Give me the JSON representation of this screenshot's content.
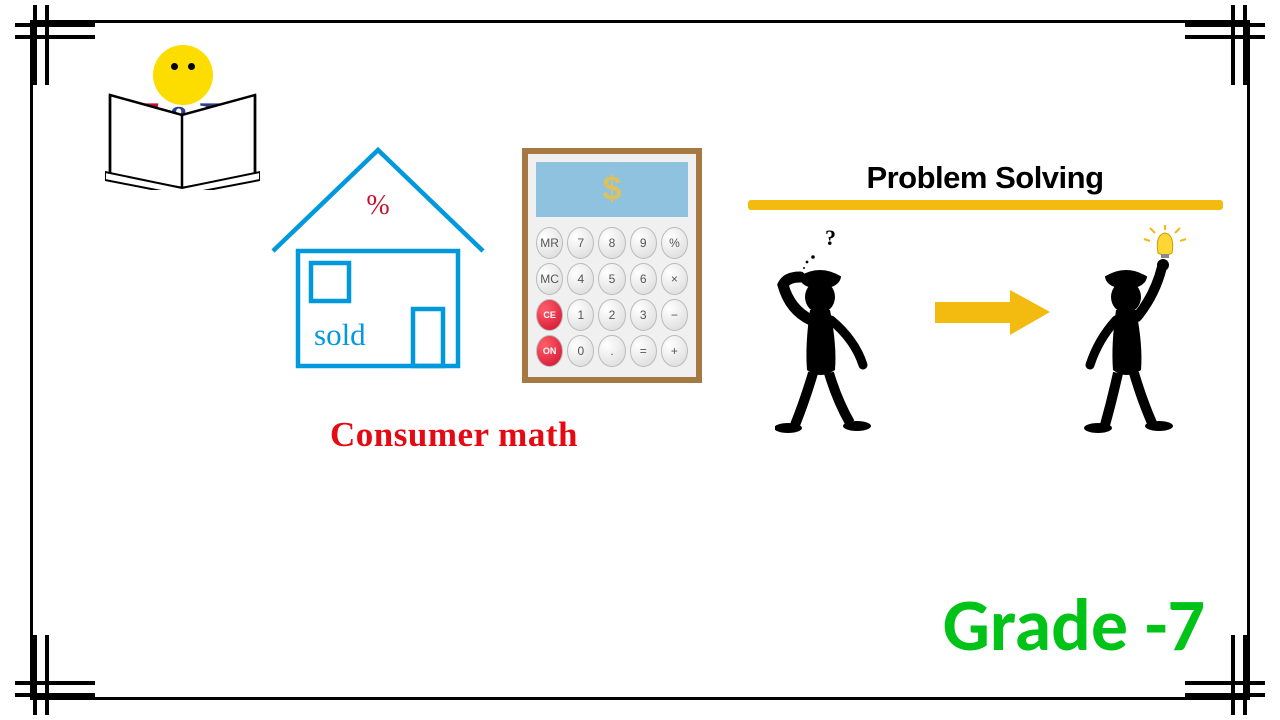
{
  "logo": {
    "letter_t": "T",
    "letter_amp": "&",
    "letter_h": "H",
    "t_color": "#c8102e",
    "h_color": "#2d3e8f",
    "smiley_color": "#fddd00"
  },
  "house": {
    "percent_symbol": "%",
    "percent_color": "#c8102e",
    "sold_text": "sold",
    "line_color": "#0099dd"
  },
  "calculator": {
    "border_color": "#a67844",
    "display_bg": "#8ec2df",
    "display_symbol": "$",
    "display_symbol_color": "#dec15f",
    "buttons": [
      {
        "label": "MR",
        "red": false
      },
      {
        "label": "7",
        "red": false
      },
      {
        "label": "8",
        "red": false
      },
      {
        "label": "9",
        "red": false
      },
      {
        "label": "%",
        "red": false
      },
      {
        "label": "MC",
        "red": false
      },
      {
        "label": "4",
        "red": false
      },
      {
        "label": "5",
        "red": false
      },
      {
        "label": "6",
        "red": false
      },
      {
        "label": "×",
        "red": false
      },
      {
        "label": "CE",
        "red": true
      },
      {
        "label": "1",
        "red": false
      },
      {
        "label": "2",
        "red": false
      },
      {
        "label": "3",
        "red": false
      },
      {
        "label": "−",
        "red": false
      },
      {
        "label": "ON",
        "red": true
      },
      {
        "label": "0",
        "red": false
      },
      {
        "label": ".",
        "red": false
      },
      {
        "label": "=",
        "red": false
      },
      {
        "label": "+",
        "red": false
      }
    ]
  },
  "problem_solving": {
    "title": "Problem Solving",
    "title_color": "#000000",
    "underline_color": "#f3ba0f",
    "arrow_color": "#f3ba0f",
    "confused_symbols": "?",
    "lightbulb_color": "#ffd633"
  },
  "consumer_math": {
    "text": "Consumer  math",
    "color": "#e50914",
    "fontsize": 35
  },
  "grade": {
    "text": "Grade -7",
    "color": "#00c318",
    "fontsize": 74
  },
  "frame": {
    "border_color": "#000000"
  }
}
